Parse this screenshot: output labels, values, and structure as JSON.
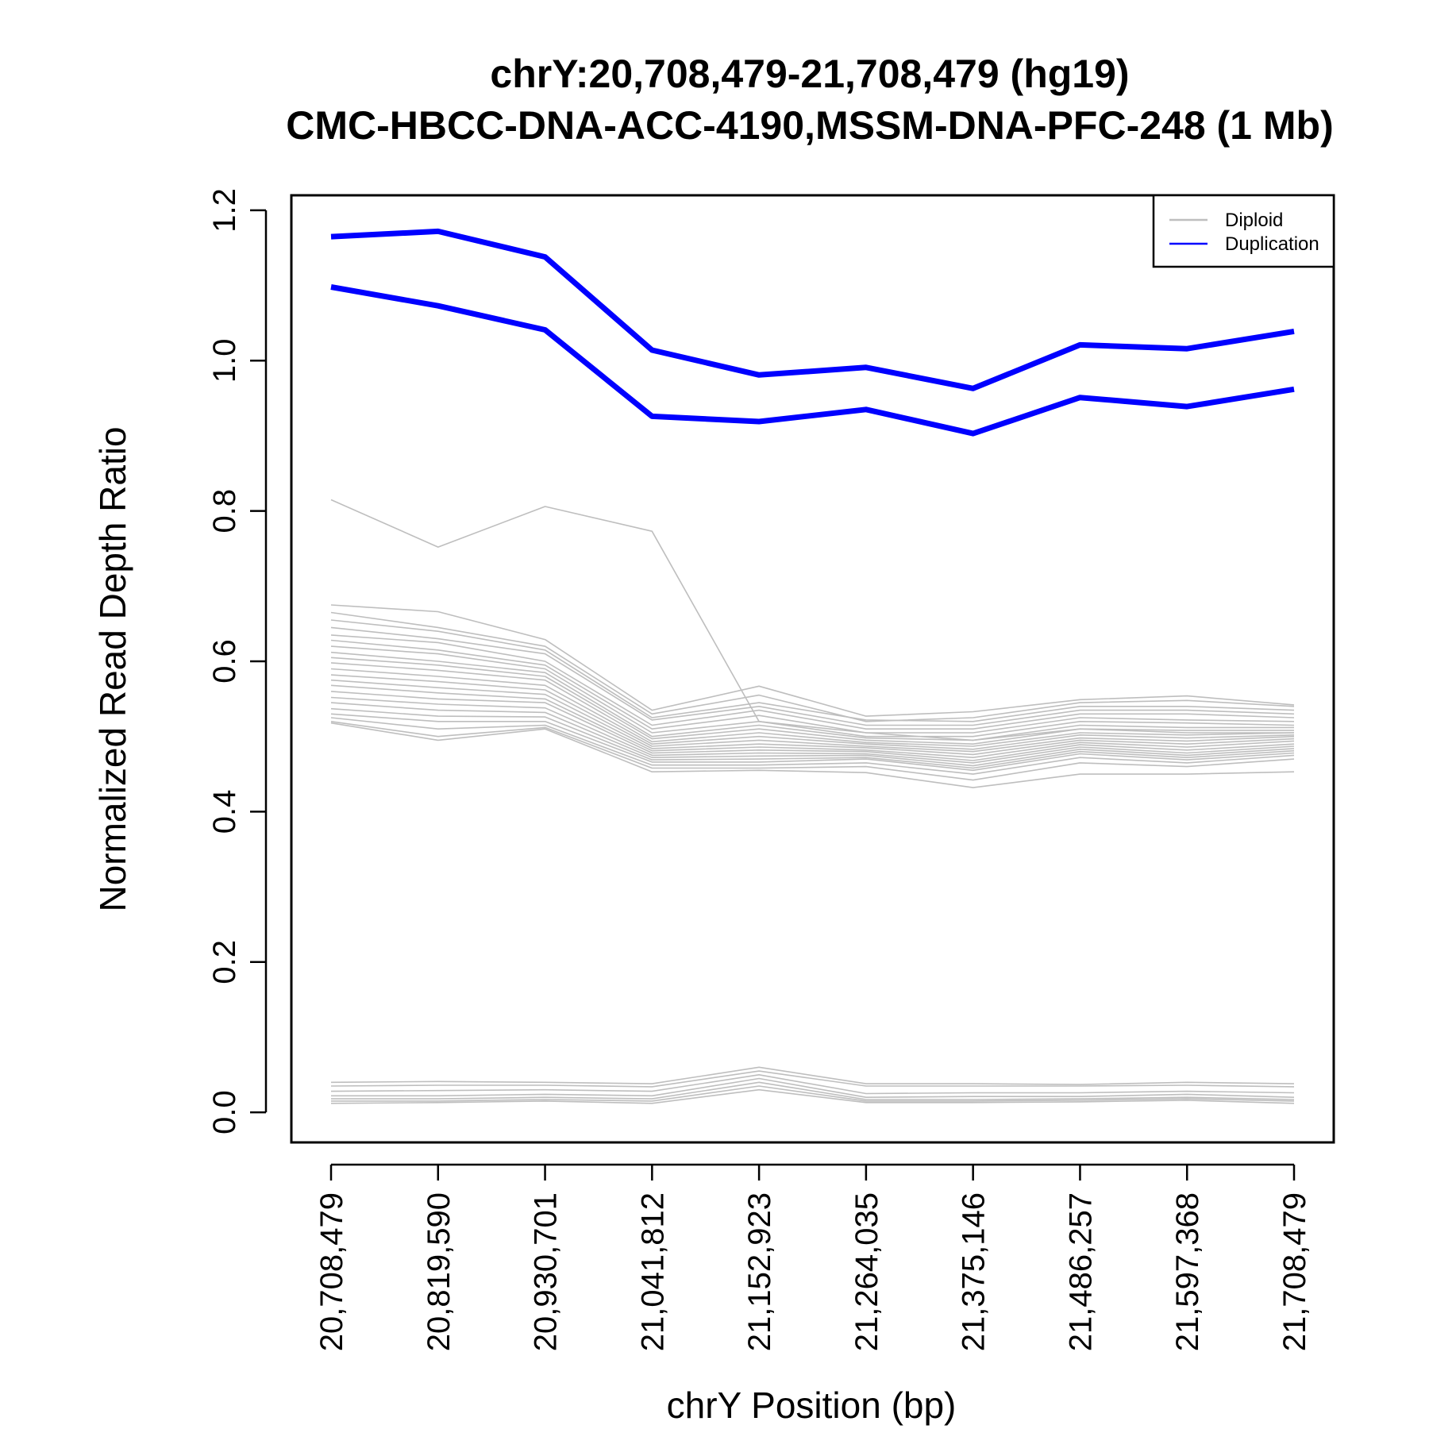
{
  "chart_data": {
    "type": "line",
    "title": "chrY:20,708,479-21,708,479 (hg19)",
    "subtitle": "CMC-HBCC-DNA-ACC-4190,MSSM-DNA-PFC-248 (1 Mb)",
    "xlabel": "chrY Position (bp)",
    "ylabel": "Normalized Read Depth Ratio",
    "x": [
      20708479,
      20819590,
      20930701,
      21041812,
      21152923,
      21264035,
      21375146,
      21486257,
      21597368,
      21708479
    ],
    "x_tick_labels": [
      "20,708,479",
      "20,819,590",
      "20,930,701",
      "21,041,812",
      "21,152,923",
      "21,264,035",
      "21,375,146",
      "21,486,257",
      "21,597,368",
      "21,708,479"
    ],
    "ylim": [
      -0.04,
      1.22
    ],
    "y_ticks": [
      0.0,
      0.2,
      0.4,
      0.6,
      0.8,
      1.0,
      1.2
    ],
    "y_tick_labels": [
      "0.0",
      "0.2",
      "0.4",
      "0.6",
      "0.8",
      "1.0",
      "1.2"
    ],
    "grid": false,
    "legend": {
      "placement": "top-right",
      "entries": [
        {
          "label": "Diploid",
          "color": "#bebebe"
        },
        {
          "label": "Duplication",
          "color": "#0000ff"
        }
      ]
    },
    "series": [
      {
        "name": "Duplication",
        "color": "#0000ff",
        "values": [
          1.165,
          1.172,
          1.138,
          1.014,
          0.981,
          0.991,
          0.963,
          1.021,
          1.016,
          1.039
        ]
      },
      {
        "name": "Duplication",
        "color": "#0000ff",
        "values": [
          1.098,
          1.073,
          1.041,
          0.926,
          0.919,
          0.935,
          0.903,
          0.951,
          0.939,
          0.962
        ]
      },
      {
        "name": "Diploid",
        "color": "#bebebe",
        "values": [
          0.815,
          0.752,
          0.806,
          0.773,
          0.52,
          0.505,
          0.495,
          0.51,
          0.505,
          0.505
        ]
      },
      {
        "name": "Diploid",
        "color": "#bebebe",
        "values": [
          0.675,
          0.666,
          0.629,
          0.535,
          0.567,
          0.527,
          0.533,
          0.549,
          0.554,
          0.542
        ]
      },
      {
        "name": "Diploid",
        "color": "#bebebe",
        "values": [
          0.665,
          0.645,
          0.62,
          0.53,
          0.555,
          0.52,
          0.525,
          0.545,
          0.548,
          0.54
        ]
      },
      {
        "name": "Diploid",
        "color": "#bebebe",
        "values": [
          0.655,
          0.64,
          0.615,
          0.525,
          0.545,
          0.522,
          0.52,
          0.54,
          0.54,
          0.535
        ]
      },
      {
        "name": "Diploid",
        "color": "#bebebe",
        "values": [
          0.645,
          0.63,
          0.61,
          0.522,
          0.54,
          0.515,
          0.515,
          0.535,
          0.535,
          0.53
        ]
      },
      {
        "name": "Diploid",
        "color": "#bebebe",
        "values": [
          0.635,
          0.625,
          0.6,
          0.515,
          0.535,
          0.51,
          0.51,
          0.53,
          0.53,
          0.525
        ]
      },
      {
        "name": "Diploid",
        "color": "#bebebe",
        "values": [
          0.628,
          0.615,
          0.595,
          0.51,
          0.528,
          0.505,
          0.505,
          0.525,
          0.522,
          0.52
        ]
      },
      {
        "name": "Diploid",
        "color": "#bebebe",
        "values": [
          0.62,
          0.61,
          0.59,
          0.505,
          0.52,
          0.5,
          0.5,
          0.52,
          0.518,
          0.515
        ]
      },
      {
        "name": "Diploid",
        "color": "#bebebe",
        "values": [
          0.612,
          0.6,
          0.585,
          0.5,
          0.515,
          0.498,
          0.495,
          0.515,
          0.512,
          0.512
        ]
      },
      {
        "name": "Diploid",
        "color": "#bebebe",
        "values": [
          0.605,
          0.595,
          0.58,
          0.497,
          0.51,
          0.495,
          0.49,
          0.51,
          0.508,
          0.508
        ]
      },
      {
        "name": "Diploid",
        "color": "#bebebe",
        "values": [
          0.598,
          0.588,
          0.575,
          0.493,
          0.505,
          0.492,
          0.487,
          0.505,
          0.502,
          0.505
        ]
      },
      {
        "name": "Diploid",
        "color": "#bebebe",
        "values": [
          0.59,
          0.58,
          0.568,
          0.49,
          0.5,
          0.49,
          0.483,
          0.502,
          0.498,
          0.502
        ]
      },
      {
        "name": "Diploid",
        "color": "#bebebe",
        "values": [
          0.582,
          0.573,
          0.562,
          0.487,
          0.495,
          0.487,
          0.48,
          0.498,
          0.494,
          0.5
        ]
      },
      {
        "name": "Diploid",
        "color": "#bebebe",
        "values": [
          0.575,
          0.565,
          0.556,
          0.484,
          0.49,
          0.485,
          0.476,
          0.495,
          0.49,
          0.497
        ]
      },
      {
        "name": "Diploid",
        "color": "#bebebe",
        "values": [
          0.568,
          0.558,
          0.55,
          0.481,
          0.486,
          0.482,
          0.472,
          0.492,
          0.486,
          0.494
        ]
      },
      {
        "name": "Diploid",
        "color": "#bebebe",
        "values": [
          0.56,
          0.55,
          0.545,
          0.478,
          0.482,
          0.48,
          0.468,
          0.489,
          0.482,
          0.49
        ]
      },
      {
        "name": "Diploid",
        "color": "#bebebe",
        "values": [
          0.552,
          0.543,
          0.538,
          0.475,
          0.478,
          0.477,
          0.465,
          0.486,
          0.478,
          0.487
        ]
      },
      {
        "name": "Diploid",
        "color": "#bebebe",
        "values": [
          0.545,
          0.535,
          0.532,
          0.472,
          0.474,
          0.475,
          0.461,
          0.483,
          0.475,
          0.484
        ]
      },
      {
        "name": "Diploid",
        "color": "#bebebe",
        "values": [
          0.537,
          0.527,
          0.526,
          0.469,
          0.47,
          0.472,
          0.458,
          0.48,
          0.472,
          0.481
        ]
      },
      {
        "name": "Diploid",
        "color": "#bebebe",
        "values": [
          0.53,
          0.52,
          0.52,
          0.466,
          0.466,
          0.47,
          0.455,
          0.477,
          0.469,
          0.478
        ]
      },
      {
        "name": "Diploid",
        "color": "#bebebe",
        "values": [
          0.525,
          0.51,
          0.515,
          0.462,
          0.462,
          0.465,
          0.45,
          0.472,
          0.465,
          0.475
        ]
      },
      {
        "name": "Diploid",
        "color": "#bebebe",
        "values": [
          0.52,
          0.5,
          0.512,
          0.458,
          0.458,
          0.46,
          0.442,
          0.465,
          0.46,
          0.47
        ]
      },
      {
        "name": "Diploid",
        "color": "#bebebe",
        "values": [
          0.518,
          0.495,
          0.51,
          0.453,
          0.455,
          0.452,
          0.432,
          0.45,
          0.45,
          0.453
        ]
      },
      {
        "name": "Diploid",
        "color": "#bebebe",
        "values": [
          0.04,
          0.041,
          0.04,
          0.038,
          0.06,
          0.038,
          0.038,
          0.037,
          0.04,
          0.038
        ]
      },
      {
        "name": "Diploid",
        "color": "#bebebe",
        "values": [
          0.035,
          0.036,
          0.036,
          0.034,
          0.055,
          0.035,
          0.035,
          0.035,
          0.036,
          0.034
        ]
      },
      {
        "name": "Diploid",
        "color": "#bebebe",
        "values": [
          0.028,
          0.029,
          0.03,
          0.028,
          0.05,
          0.025,
          0.026,
          0.026,
          0.028,
          0.026
        ]
      },
      {
        "name": "Diploid",
        "color": "#bebebe",
        "values": [
          0.022,
          0.022,
          0.024,
          0.022,
          0.045,
          0.02,
          0.021,
          0.021,
          0.024,
          0.02
        ]
      },
      {
        "name": "Diploid",
        "color": "#bebebe",
        "values": [
          0.018,
          0.018,
          0.02,
          0.018,
          0.04,
          0.017,
          0.017,
          0.018,
          0.02,
          0.017
        ]
      },
      {
        "name": "Diploid",
        "color": "#bebebe",
        "values": [
          0.015,
          0.015,
          0.017,
          0.015,
          0.035,
          0.015,
          0.015,
          0.016,
          0.018,
          0.015
        ]
      },
      {
        "name": "Diploid",
        "color": "#bebebe",
        "values": [
          0.012,
          0.013,
          0.015,
          0.012,
          0.03,
          0.013,
          0.013,
          0.014,
          0.016,
          0.012
        ]
      }
    ]
  }
}
